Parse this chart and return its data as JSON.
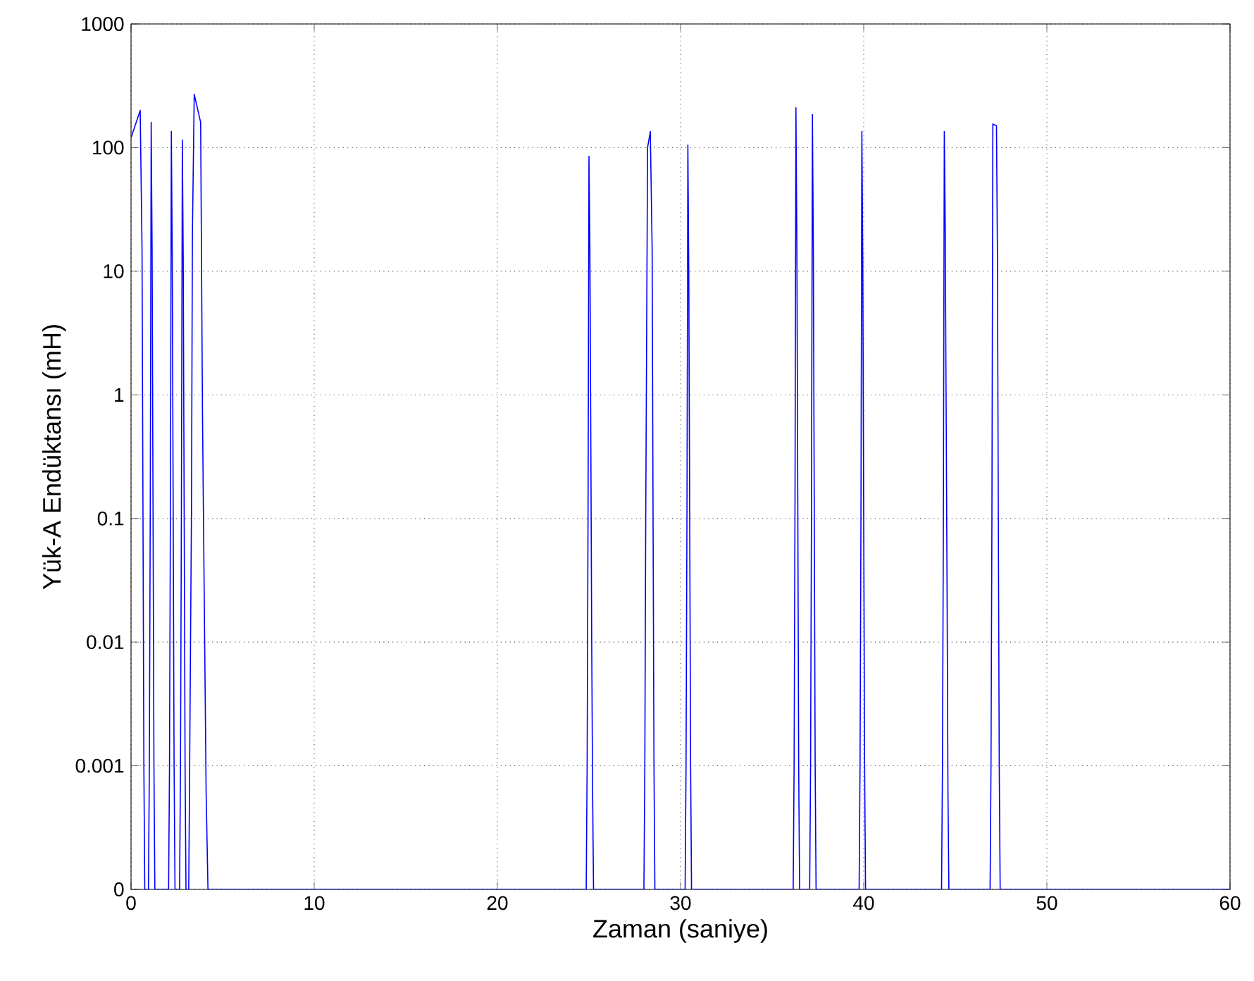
{
  "chart_data": {
    "type": "line",
    "xlabel": "Zaman (saniye)",
    "ylabel": "Yük-A Endüktansı (mH)",
    "log": "y",
    "grid": true,
    "line_style": "solid",
    "xlim": [
      0,
      60
    ],
    "xticks": [
      0,
      10,
      20,
      30,
      40,
      50,
      60
    ],
    "ylim": [
      0.0001,
      1000
    ],
    "yticks": [
      {
        "value": 0.0001,
        "label": "0"
      },
      0.001,
      0.01,
      0.1,
      1,
      10,
      100,
      1000
    ],
    "series": [
      {
        "color": "#0000ff",
        "x": [
          0,
          0.5,
          0.6,
          0.65,
          0.7,
          0.75,
          0.95,
          1.0,
          1.05,
          1.1,
          1.15,
          1.2,
          1.25,
          1.3,
          2.05,
          2.1,
          2.15,
          2.2,
          2.25,
          2.3,
          2.35,
          2.4,
          2.65,
          2.7,
          2.75,
          2.8,
          2.85,
          2.9,
          2.95,
          3.0,
          3.15,
          3.2,
          3.3,
          3.35,
          3.45,
          3.8,
          3.9,
          4.0,
          4.1,
          4.2,
          24.85,
          24.9,
          24.95,
          25.0,
          25.05,
          25.1,
          25.15,
          25.2,
          25.25,
          28.0,
          28.05,
          28.1,
          28.2,
          28.35,
          28.45,
          28.5,
          28.55,
          28.6,
          30.25,
          30.3,
          30.35,
          30.4,
          30.45,
          30.5,
          30.55,
          30.6,
          36.15,
          36.2,
          36.25,
          36.3,
          36.35,
          36.4,
          36.45,
          36.5,
          37.05,
          37.1,
          37.15,
          37.2,
          37.25,
          37.3,
          37.35,
          37.4,
          39.75,
          39.8,
          39.85,
          39.9,
          39.95,
          40.0,
          40.05,
          40.1,
          44.25,
          44.3,
          44.35,
          44.4,
          44.45,
          44.5,
          44.55,
          44.6,
          44.65,
          46.9,
          46.95,
          47.0,
          47.05,
          47.25,
          47.3,
          47.35,
          47.4,
          47.45,
          60
        ],
        "values": [
          120,
          200,
          15,
          0.13,
          0.001,
          0.0001,
          0.0001,
          0.001,
          0.13,
          160,
          15,
          0.13,
          0.001,
          0.0001,
          0.0001,
          0.001,
          0.13,
          135,
          13,
          0.12,
          0.001,
          0.0001,
          0.0001,
          0.001,
          0.12,
          115,
          12,
          0.12,
          0.001,
          0.0001,
          0.0001,
          0.001,
          0.12,
          20,
          270,
          160,
          0.7,
          0.02,
          0.0006,
          0.0001,
          0.0001,
          0.001,
          0.1,
          85,
          16,
          0.5,
          0.01,
          0.0006,
          0.0001,
          0.0001,
          0.001,
          0.1,
          100,
          135,
          15,
          0.1,
          0.001,
          0.0001,
          0.0001,
          0.001,
          0.1,
          105,
          10,
          0.1,
          0.001,
          0.0001,
          0.0001,
          0.001,
          0.15,
          210,
          18,
          0.15,
          0.001,
          0.0001,
          0.0001,
          0.001,
          0.13,
          185,
          16,
          0.13,
          0.001,
          0.0001,
          0.0001,
          0.001,
          0.1,
          135,
          12,
          0.1,
          0.001,
          0.0001,
          0.0001,
          0.001,
          0.1,
          135,
          24,
          0.8,
          0.03,
          0.0006,
          0.0001,
          0.0001,
          0.001,
          0.1,
          155,
          150,
          14,
          0.1,
          0.001,
          0.0001,
          0.0001
        ]
      }
    ]
  }
}
